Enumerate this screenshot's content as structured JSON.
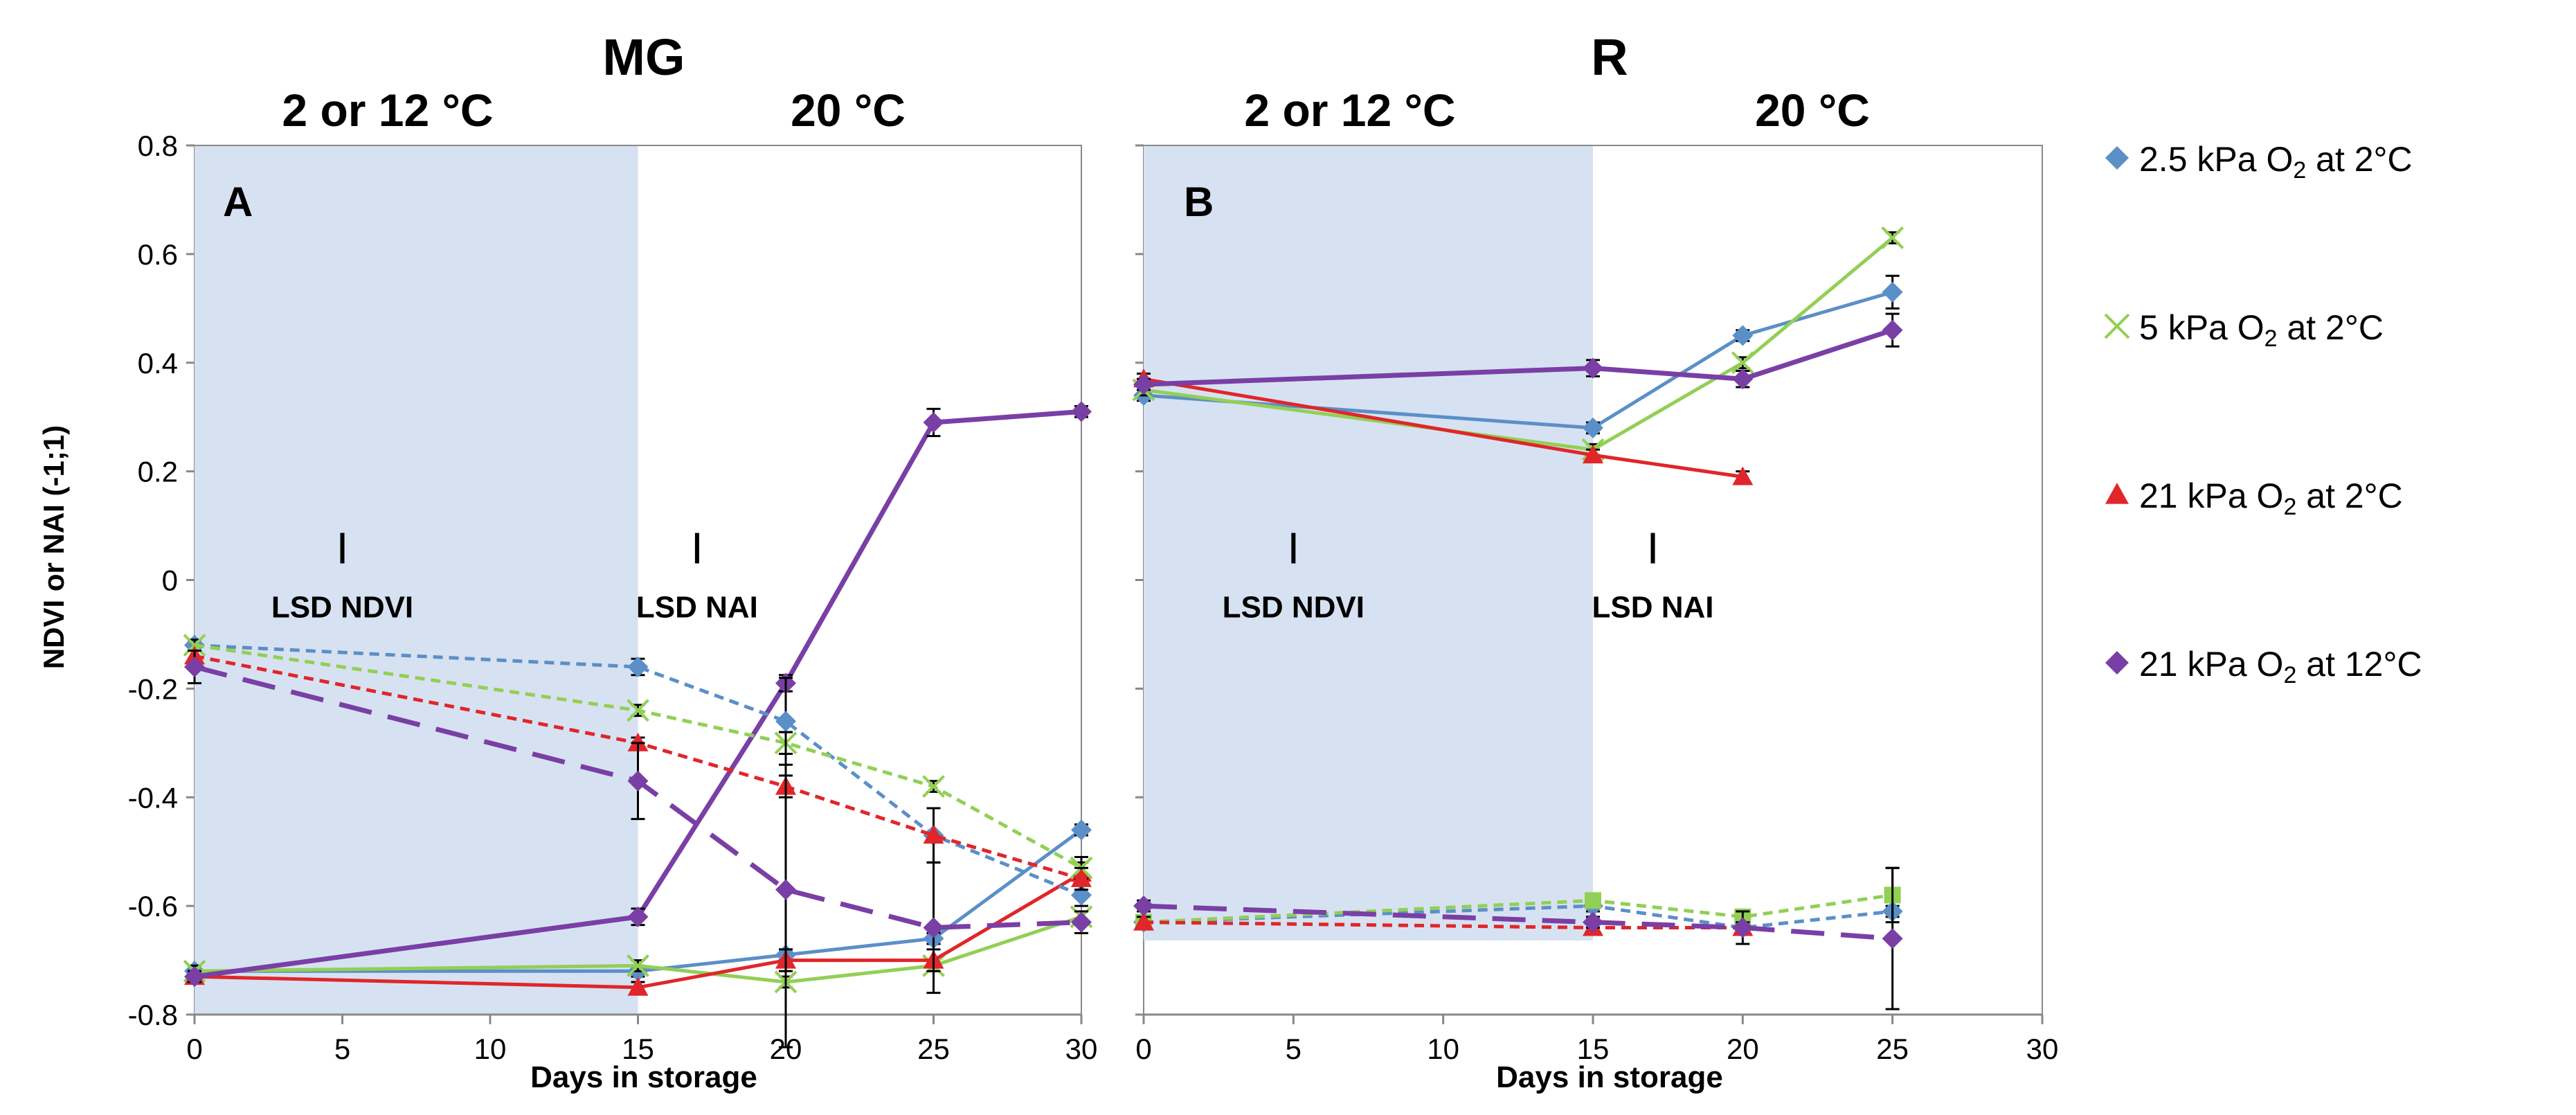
{
  "chart_data": [
    {
      "panel": "A",
      "title": "MG",
      "type": "line",
      "xlabel": "Days in storage",
      "ylabel": "NDVI or NAI (-1;1)",
      "xlim": [
        0,
        30
      ],
      "ylim": [
        -0.8,
        0.8
      ],
      "xticks": [
        "0",
        "5",
        "10",
        "15",
        "20",
        "25",
        "30"
      ],
      "yticks": [
        "-0.8",
        "-0.6",
        "-0.4",
        "-0.2",
        "0",
        "0.2",
        "0.4",
        "0.6",
        "0.8"
      ],
      "shaded_region": {
        "x": [
          0,
          15
        ],
        "label": "2  or 12 °C"
      },
      "unshaded_label": "20 °C",
      "annotations": [
        {
          "text": "LSD NDVI",
          "x": 5,
          "y": 0
        },
        {
          "text": "LSD NAI",
          "x": 17,
          "y": 0
        }
      ],
      "series": [
        {
          "name": "2.5  kPa O2 at 2°C",
          "metric": "NDVI",
          "color": "#5b8fc7",
          "marker": "diamond",
          "style": "solid",
          "x": [
            0,
            15,
            20,
            25,
            30
          ],
          "y": [
            -0.72,
            -0.72,
            -0.69,
            -0.66,
            -0.46
          ],
          "err": [
            0.01,
            0.01,
            0.01,
            0.01,
            0.01
          ]
        },
        {
          "name": "5 kPa O2 at 2°C",
          "metric": "NDVI",
          "color": "#92cf55",
          "marker": "x",
          "style": "solid",
          "x": [
            0,
            15,
            20,
            25,
            30
          ],
          "y": [
            -0.72,
            -0.71,
            -0.74,
            -0.71,
            -0.62
          ],
          "err": [
            0.01,
            0.01,
            0.01,
            0.01,
            0.01
          ]
        },
        {
          "name": "21 kPa O2 at 2°C",
          "metric": "NDVI",
          "color": "#e0262a",
          "marker": "triangle",
          "style": "solid",
          "x": [
            0,
            15,
            20,
            25,
            30
          ],
          "y": [
            -0.73,
            -0.75,
            -0.7,
            -0.7,
            -0.54
          ],
          "err": [
            0.01,
            0.01,
            0.02,
            0.02,
            0.02
          ]
        },
        {
          "name": "21 kPa O2 at 12°C",
          "metric": "NDVI",
          "color": "#7a3fa5",
          "marker": "diamond",
          "style": "solid",
          "x": [
            0,
            15,
            20,
            25,
            30
          ],
          "y": [
            -0.73,
            -0.62,
            -0.19,
            0.29,
            0.31
          ],
          "err": [
            0.01,
            0.015,
            0.015,
            0.025,
            0.01
          ]
        },
        {
          "name": "2.5  kPa O2 at 2°C",
          "metric": "NAI",
          "color": "#5b8fc7",
          "marker": "diamond",
          "style": "dashed",
          "x": [
            0,
            15,
            20,
            25,
            30
          ],
          "y": [
            -0.12,
            -0.16,
            -0.26,
            -0.47,
            -0.58
          ],
          "err": [
            0.01,
            0.015,
            0.08,
            0.05,
            0.02
          ]
        },
        {
          "name": "5 kPa O2 at 2°C",
          "metric": "NAI",
          "color": "#92cf55",
          "marker": "x",
          "style": "dashed",
          "x": [
            0,
            15,
            20,
            25,
            30
          ],
          "y": [
            -0.12,
            -0.24,
            -0.3,
            -0.38,
            -0.53
          ],
          "err": [
            0.01,
            0.01,
            0.02,
            0.01,
            0.02
          ]
        },
        {
          "name": "21 kPa O2 at 2°C",
          "metric": "NAI",
          "color": "#e0262a",
          "marker": "triangle",
          "style": "dashed",
          "x": [
            0,
            15,
            20,
            25,
            30
          ],
          "y": [
            -0.14,
            -0.3,
            -0.38,
            -0.47,
            -0.55
          ],
          "err": [
            0.01,
            0.01,
            0.02,
            0.05,
            0.02
          ]
        },
        {
          "name": "21 kPa O2 at 12°C",
          "metric": "NAI",
          "color": "#7a3fa5",
          "marker": "diamond",
          "style": "longdash",
          "x": [
            0,
            15,
            20,
            25,
            30
          ],
          "y": [
            -0.16,
            -0.37,
            -0.57,
            -0.64,
            -0.63
          ],
          "err": [
            0.03,
            0.07,
            0.29,
            0.12,
            0.02
          ]
        }
      ]
    },
    {
      "panel": "B",
      "title": "R",
      "type": "line",
      "xlabel": "Days in storage",
      "ylabel": "",
      "xlim": [
        0,
        30
      ],
      "ylim": [
        -0.8,
        0.8
      ],
      "xticks": [
        "0",
        "5",
        "10",
        "15",
        "20",
        "25",
        "30"
      ],
      "shaded_region": {
        "x": [
          0,
          15
        ],
        "label": "2  or 12 °C"
      },
      "unshaded_label": "20 °C",
      "annotations": [
        {
          "text": "LSD NDVI",
          "x": 5,
          "y": 0
        },
        {
          "text": "LSD NAI",
          "x": 17,
          "y": 0
        }
      ],
      "series": [
        {
          "name": "2.5  kPa O2 at 2°C",
          "metric": "NDVI",
          "color": "#5b8fc7",
          "marker": "diamond",
          "style": "solid",
          "x": [
            0,
            15,
            20,
            25
          ],
          "y": [
            0.34,
            0.28,
            0.45,
            0.53
          ],
          "err": [
            0.01,
            0.01,
            0.01,
            0.03
          ]
        },
        {
          "name": "5 kPa O2 at 2°C",
          "metric": "NDVI",
          "color": "#92cf55",
          "marker": "x",
          "style": "solid",
          "x": [
            0,
            15,
            20,
            25
          ],
          "y": [
            0.35,
            0.24,
            0.4,
            0.63
          ],
          "err": [
            0.01,
            0.01,
            0.01,
            0.01
          ]
        },
        {
          "name": "21 kPa O2 at 2°C",
          "metric": "NDVI",
          "color": "#e0262a",
          "marker": "triangle",
          "style": "solid",
          "x": [
            0,
            15,
            20
          ],
          "y": [
            0.37,
            0.23,
            0.19
          ],
          "err": [
            0.01,
            0.01,
            0.01
          ]
        },
        {
          "name": "21 kPa O2 at 12°C",
          "metric": "NDVI",
          "color": "#7a3fa5",
          "marker": "diamond",
          "style": "solid",
          "x": [
            0,
            15,
            20,
            25
          ],
          "y": [
            0.36,
            0.39,
            0.37,
            0.46
          ],
          "err": [
            0.01,
            0.015,
            0.015,
            0.03
          ]
        },
        {
          "name": "2.5  kPa O2 at 2°C",
          "metric": "NAI",
          "color": "#5b8fc7",
          "marker": "diamond",
          "style": "dashed",
          "x": [
            0,
            15,
            20,
            25
          ],
          "y": [
            -0.63,
            -0.6,
            -0.64,
            -0.61
          ],
          "err": [
            0.01,
            0.01,
            0.01,
            0.01
          ]
        },
        {
          "name": "5 kPa O2 at 2°C",
          "metric": "NAI",
          "color": "#92cf55",
          "marker": "square",
          "style": "dashed",
          "x": [
            0,
            15,
            20,
            25
          ],
          "y": [
            -0.63,
            -0.59,
            -0.62,
            -0.58
          ],
          "err": [
            0.01,
            0.01,
            0.01,
            0.05
          ]
        },
        {
          "name": "21 kPa O2 at 2°C",
          "metric": "NAI",
          "color": "#e0262a",
          "marker": "triangle",
          "style": "dashed",
          "x": [
            0,
            15,
            20
          ],
          "y": [
            -0.63,
            -0.64,
            -0.64
          ],
          "err": [
            0.01,
            0.01,
            0.01
          ]
        },
        {
          "name": "21 kPa O2 at 12°C",
          "metric": "NAI",
          "color": "#7a3fa5",
          "marker": "diamond",
          "style": "longdash",
          "x": [
            0,
            15,
            20,
            25
          ],
          "y": [
            -0.6,
            -0.63,
            -0.64,
            -0.66
          ],
          "err": [
            0.01,
            0.01,
            0.03,
            0.13
          ]
        }
      ]
    }
  ],
  "legend": [
    {
      "label_pre": "2.5  kPa O",
      "sub": "2",
      "label_post": " at 2°C",
      "color": "#5b8fc7",
      "marker": "diamond"
    },
    {
      "label_pre": "5 kPa O",
      "sub": "2",
      "label_post": " at 2°C",
      "color": "#92cf55",
      "marker": "x"
    },
    {
      "label_pre": "21 kPa O",
      "sub": "2",
      "label_post": " at 2°C",
      "color": "#e0262a",
      "marker": "triangle"
    },
    {
      "label_pre": "21 kPa O",
      "sub": "2",
      "label_post": " at 12°C",
      "color": "#7a3fa5",
      "marker": "diamond"
    }
  ],
  "colors": {
    "shade": "#d6e2f1",
    "axis": "#888888",
    "text": "#000000"
  }
}
